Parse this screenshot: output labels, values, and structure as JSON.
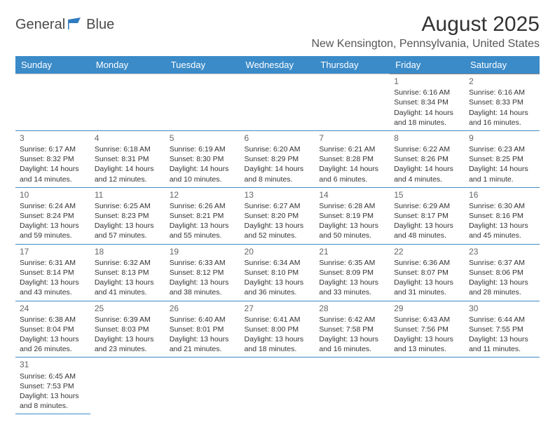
{
  "logo": {
    "word1": "General",
    "word2": "Blue"
  },
  "title": "August 2025",
  "location": "New Kensington, Pennsylvania, United States",
  "colors": {
    "header_bg": "#3b8bc9",
    "header_text": "#ffffff",
    "row_border_top": "#888888",
    "row_border_bottom": "#3b8bc9",
    "logo_blue": "#2f7bbf",
    "text": "#333333"
  },
  "columns": [
    "Sunday",
    "Monday",
    "Tuesday",
    "Wednesday",
    "Thursday",
    "Friday",
    "Saturday"
  ],
  "weeks": [
    [
      null,
      null,
      null,
      null,
      null,
      {
        "d": "1",
        "sr": "Sunrise: 6:16 AM",
        "ss": "Sunset: 8:34 PM",
        "dl1": "Daylight: 14 hours",
        "dl2": "and 18 minutes."
      },
      {
        "d": "2",
        "sr": "Sunrise: 6:16 AM",
        "ss": "Sunset: 8:33 PM",
        "dl1": "Daylight: 14 hours",
        "dl2": "and 16 minutes."
      }
    ],
    [
      {
        "d": "3",
        "sr": "Sunrise: 6:17 AM",
        "ss": "Sunset: 8:32 PM",
        "dl1": "Daylight: 14 hours",
        "dl2": "and 14 minutes."
      },
      {
        "d": "4",
        "sr": "Sunrise: 6:18 AM",
        "ss": "Sunset: 8:31 PM",
        "dl1": "Daylight: 14 hours",
        "dl2": "and 12 minutes."
      },
      {
        "d": "5",
        "sr": "Sunrise: 6:19 AM",
        "ss": "Sunset: 8:30 PM",
        "dl1": "Daylight: 14 hours",
        "dl2": "and 10 minutes."
      },
      {
        "d": "6",
        "sr": "Sunrise: 6:20 AM",
        "ss": "Sunset: 8:29 PM",
        "dl1": "Daylight: 14 hours",
        "dl2": "and 8 minutes."
      },
      {
        "d": "7",
        "sr": "Sunrise: 6:21 AM",
        "ss": "Sunset: 8:28 PM",
        "dl1": "Daylight: 14 hours",
        "dl2": "and 6 minutes."
      },
      {
        "d": "8",
        "sr": "Sunrise: 6:22 AM",
        "ss": "Sunset: 8:26 PM",
        "dl1": "Daylight: 14 hours",
        "dl2": "and 4 minutes."
      },
      {
        "d": "9",
        "sr": "Sunrise: 6:23 AM",
        "ss": "Sunset: 8:25 PM",
        "dl1": "Daylight: 14 hours",
        "dl2": "and 1 minute."
      }
    ],
    [
      {
        "d": "10",
        "sr": "Sunrise: 6:24 AM",
        "ss": "Sunset: 8:24 PM",
        "dl1": "Daylight: 13 hours",
        "dl2": "and 59 minutes."
      },
      {
        "d": "11",
        "sr": "Sunrise: 6:25 AM",
        "ss": "Sunset: 8:23 PM",
        "dl1": "Daylight: 13 hours",
        "dl2": "and 57 minutes."
      },
      {
        "d": "12",
        "sr": "Sunrise: 6:26 AM",
        "ss": "Sunset: 8:21 PM",
        "dl1": "Daylight: 13 hours",
        "dl2": "and 55 minutes."
      },
      {
        "d": "13",
        "sr": "Sunrise: 6:27 AM",
        "ss": "Sunset: 8:20 PM",
        "dl1": "Daylight: 13 hours",
        "dl2": "and 52 minutes."
      },
      {
        "d": "14",
        "sr": "Sunrise: 6:28 AM",
        "ss": "Sunset: 8:19 PM",
        "dl1": "Daylight: 13 hours",
        "dl2": "and 50 minutes."
      },
      {
        "d": "15",
        "sr": "Sunrise: 6:29 AM",
        "ss": "Sunset: 8:17 PM",
        "dl1": "Daylight: 13 hours",
        "dl2": "and 48 minutes."
      },
      {
        "d": "16",
        "sr": "Sunrise: 6:30 AM",
        "ss": "Sunset: 8:16 PM",
        "dl1": "Daylight: 13 hours",
        "dl2": "and 45 minutes."
      }
    ],
    [
      {
        "d": "17",
        "sr": "Sunrise: 6:31 AM",
        "ss": "Sunset: 8:14 PM",
        "dl1": "Daylight: 13 hours",
        "dl2": "and 43 minutes."
      },
      {
        "d": "18",
        "sr": "Sunrise: 6:32 AM",
        "ss": "Sunset: 8:13 PM",
        "dl1": "Daylight: 13 hours",
        "dl2": "and 41 minutes."
      },
      {
        "d": "19",
        "sr": "Sunrise: 6:33 AM",
        "ss": "Sunset: 8:12 PM",
        "dl1": "Daylight: 13 hours",
        "dl2": "and 38 minutes."
      },
      {
        "d": "20",
        "sr": "Sunrise: 6:34 AM",
        "ss": "Sunset: 8:10 PM",
        "dl1": "Daylight: 13 hours",
        "dl2": "and 36 minutes."
      },
      {
        "d": "21",
        "sr": "Sunrise: 6:35 AM",
        "ss": "Sunset: 8:09 PM",
        "dl1": "Daylight: 13 hours",
        "dl2": "and 33 minutes."
      },
      {
        "d": "22",
        "sr": "Sunrise: 6:36 AM",
        "ss": "Sunset: 8:07 PM",
        "dl1": "Daylight: 13 hours",
        "dl2": "and 31 minutes."
      },
      {
        "d": "23",
        "sr": "Sunrise: 6:37 AM",
        "ss": "Sunset: 8:06 PM",
        "dl1": "Daylight: 13 hours",
        "dl2": "and 28 minutes."
      }
    ],
    [
      {
        "d": "24",
        "sr": "Sunrise: 6:38 AM",
        "ss": "Sunset: 8:04 PM",
        "dl1": "Daylight: 13 hours",
        "dl2": "and 26 minutes."
      },
      {
        "d": "25",
        "sr": "Sunrise: 6:39 AM",
        "ss": "Sunset: 8:03 PM",
        "dl1": "Daylight: 13 hours",
        "dl2": "and 23 minutes."
      },
      {
        "d": "26",
        "sr": "Sunrise: 6:40 AM",
        "ss": "Sunset: 8:01 PM",
        "dl1": "Daylight: 13 hours",
        "dl2": "and 21 minutes."
      },
      {
        "d": "27",
        "sr": "Sunrise: 6:41 AM",
        "ss": "Sunset: 8:00 PM",
        "dl1": "Daylight: 13 hours",
        "dl2": "and 18 minutes."
      },
      {
        "d": "28",
        "sr": "Sunrise: 6:42 AM",
        "ss": "Sunset: 7:58 PM",
        "dl1": "Daylight: 13 hours",
        "dl2": "and 16 minutes."
      },
      {
        "d": "29",
        "sr": "Sunrise: 6:43 AM",
        "ss": "Sunset: 7:56 PM",
        "dl1": "Daylight: 13 hours",
        "dl2": "and 13 minutes."
      },
      {
        "d": "30",
        "sr": "Sunrise: 6:44 AM",
        "ss": "Sunset: 7:55 PM",
        "dl1": "Daylight: 13 hours",
        "dl2": "and 11 minutes."
      }
    ],
    [
      {
        "d": "31",
        "sr": "Sunrise: 6:45 AM",
        "ss": "Sunset: 7:53 PM",
        "dl1": "Daylight: 13 hours",
        "dl2": "and 8 minutes."
      },
      null,
      null,
      null,
      null,
      null,
      null
    ]
  ]
}
